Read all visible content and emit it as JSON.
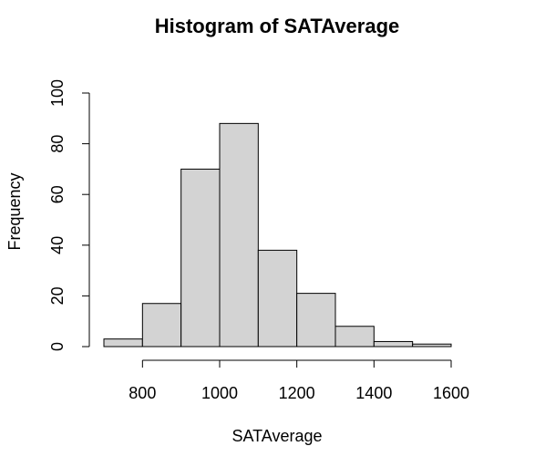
{
  "chart_data": {
    "type": "bar",
    "title": "Histogram of SATAverage",
    "xlabel": "SATAverage",
    "ylabel": "Frequency",
    "bins": [
      {
        "start": 700,
        "end": 800,
        "count": 3
      },
      {
        "start": 800,
        "end": 900,
        "count": 17
      },
      {
        "start": 900,
        "end": 1000,
        "count": 70
      },
      {
        "start": 1000,
        "end": 1100,
        "count": 88
      },
      {
        "start": 1100,
        "end": 1200,
        "count": 38
      },
      {
        "start": 1200,
        "end": 1300,
        "count": 21
      },
      {
        "start": 1300,
        "end": 1400,
        "count": 8
      },
      {
        "start": 1400,
        "end": 1500,
        "count": 2
      },
      {
        "start": 1500,
        "end": 1600,
        "count": 1
      }
    ],
    "xlim": [
      700,
      1600
    ],
    "ylim": [
      0,
      100
    ],
    "x_ticks": [
      800,
      1000,
      1200,
      1400,
      1600
    ],
    "x_tick_labels": [
      "800",
      "1000",
      "1200",
      "1400",
      "1600"
    ],
    "y_ticks": [
      0,
      20,
      40,
      60,
      80,
      100
    ],
    "y_tick_labels": [
      "0",
      "20",
      "40",
      "60",
      "80",
      "100"
    ],
    "bar_color": "#d3d3d3",
    "grid": false
  }
}
